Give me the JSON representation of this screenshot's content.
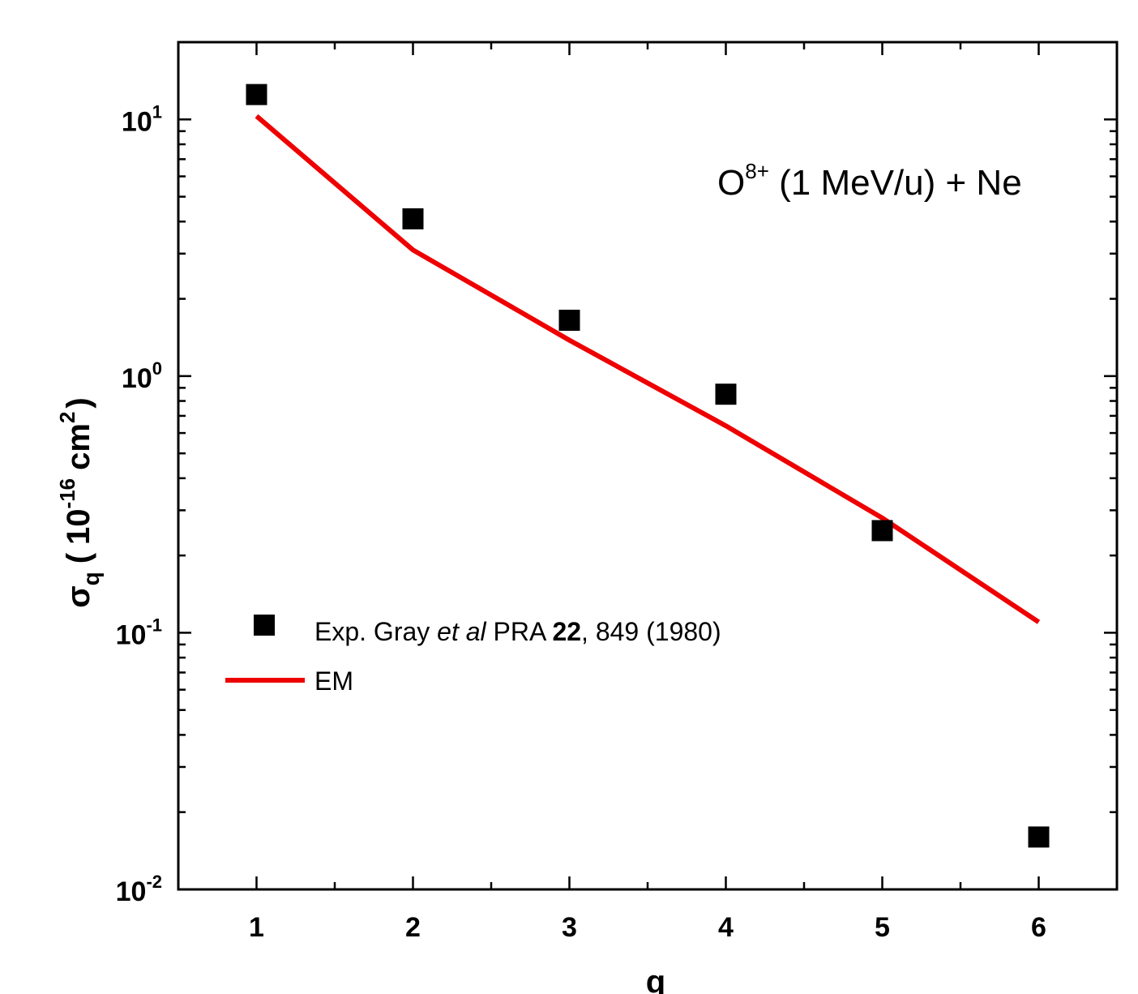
{
  "chart_data": {
    "type": "scatter",
    "xlabel": "q",
    "ylabel": {
      "symbol": "σ",
      "subscript": "q",
      "open": "(",
      "base": "10",
      "exponent": "-16",
      "unit": "cm",
      "unit_exponent": "2",
      "close": ")"
    },
    "xlim": [
      0.5,
      6.5
    ],
    "ylim": [
      0.01,
      20
    ],
    "yscale": "log",
    "x_ticks": [
      "1",
      "2",
      "3",
      "4",
      "5",
      "6"
    ],
    "y_ticks": [
      {
        "value": 10,
        "base": "10",
        "exp": "1"
      },
      {
        "value": 1,
        "base": "10",
        "exp": "0"
      },
      {
        "value": 0.1,
        "base": "10",
        "exp": "-1"
      },
      {
        "value": 0.01,
        "base": "10",
        "exp": "-2"
      }
    ],
    "annotation": {
      "species": "O",
      "charge": "8+",
      "rest": " (1 MeV/u) + Ne"
    },
    "legend_placement": "center-left",
    "series": [
      {
        "name": "Exp. Gray et al PRA 22, 849 (1980)",
        "legend_parts": [
          "Exp. Gray ",
          "et al",
          " PRA ",
          "22",
          ", 849 (1980)"
        ],
        "type": "scatter",
        "marker": "square",
        "color": "#000000",
        "x": [
          1,
          2,
          3,
          4,
          5,
          6
        ],
        "y": [
          12.5,
          4.1,
          1.65,
          0.85,
          0.25,
          0.016
        ]
      },
      {
        "name": "EM",
        "legend_parts": [
          "EM"
        ],
        "type": "line",
        "color": "#ee0000",
        "x": [
          1,
          2,
          3,
          4,
          5,
          6
        ],
        "y": [
          10.3,
          3.1,
          1.38,
          0.64,
          0.28,
          0.11
        ]
      }
    ]
  }
}
